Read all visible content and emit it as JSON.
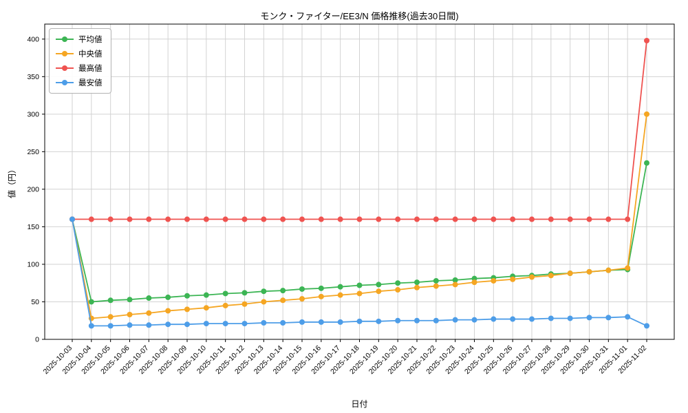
{
  "chart_data": {
    "type": "line",
    "title": "モンク・ファイター/EE3/N 価格推移(過去30日間)",
    "xlabel": "日付",
    "ylabel": "値（円）",
    "ylim": [
      0,
      420
    ],
    "yticks": [
      0,
      50,
      100,
      150,
      200,
      250,
      300,
      350,
      400
    ],
    "grid": true,
    "legend_position": "upper-left",
    "x": [
      "2025-10-03",
      "2025-10-04",
      "2025-10-05",
      "2025-10-06",
      "2025-10-07",
      "2025-10-08",
      "2025-10-09",
      "2025-10-10",
      "2025-10-11",
      "2025-10-12",
      "2025-10-13",
      "2025-10-14",
      "2025-10-15",
      "2025-10-16",
      "2025-10-17",
      "2025-10-18",
      "2025-10-19",
      "2025-10-20",
      "2025-10-21",
      "2025-10-22",
      "2025-10-23",
      "2025-10-24",
      "2025-10-25",
      "2025-10-26",
      "2025-10-27",
      "2025-10-28",
      "2025-10-29",
      "2025-10-30",
      "2025-10-31",
      "2025-11-01",
      "2025-11-02"
    ],
    "series": [
      {
        "name": "平均値",
        "color": "#3cb554",
        "values": [
          160,
          50,
          52,
          53,
          55,
          56,
          58,
          59,
          61,
          62,
          64,
          65,
          67,
          68,
          70,
          72,
          73,
          75,
          76,
          78,
          79,
          81,
          82,
          84,
          85,
          87,
          88,
          90,
          92,
          93,
          235
        ]
      },
      {
        "name": "中央値",
        "color": "#f5a623",
        "values": [
          160,
          28,
          30,
          33,
          35,
          38,
          40,
          42,
          45,
          47,
          50,
          52,
          54,
          57,
          59,
          61,
          64,
          66,
          69,
          71,
          73,
          76,
          78,
          80,
          83,
          85,
          88,
          90,
          92,
          95,
          300
        ]
      },
      {
        "name": "最高値",
        "color": "#ef5350",
        "values": [
          160,
          160,
          160,
          160,
          160,
          160,
          160,
          160,
          160,
          160,
          160,
          160,
          160,
          160,
          160,
          160,
          160,
          160,
          160,
          160,
          160,
          160,
          160,
          160,
          160,
          160,
          160,
          160,
          160,
          160,
          398
        ]
      },
      {
        "name": "最安値",
        "color": "#4d9de8",
        "values": [
          160,
          18,
          18,
          19,
          19,
          20,
          20,
          21,
          21,
          21,
          22,
          22,
          23,
          23,
          23,
          24,
          24,
          25,
          25,
          25,
          26,
          26,
          27,
          27,
          27,
          28,
          28,
          29,
          29,
          30,
          18
        ]
      }
    ]
  }
}
